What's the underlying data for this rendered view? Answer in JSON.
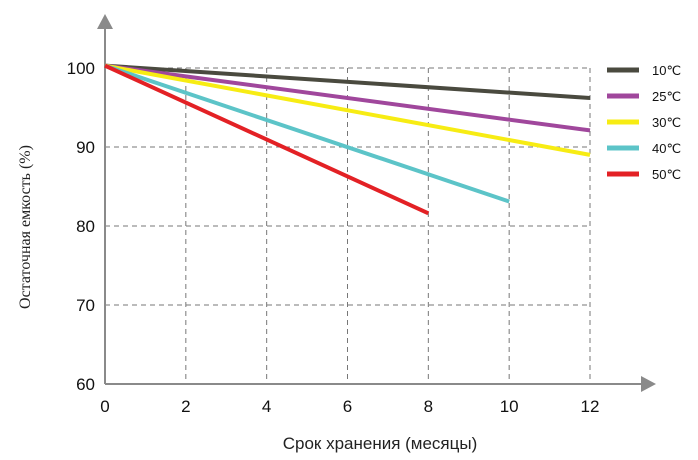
{
  "chart_data": {
    "type": "line",
    "title": "",
    "xlabel": "Срок хранения (месяцы)",
    "ylabel": "Остаточная емкость (%)",
    "xlim": [
      0,
      12
    ],
    "ylim": [
      60,
      100
    ],
    "x_ticks": [
      "0",
      "2",
      "4",
      "6",
      "8",
      "10",
      "12"
    ],
    "y_ticks": [
      "60",
      "70",
      "80",
      "90",
      "100"
    ],
    "grid": true,
    "grid_style": "dashed",
    "legend_position": "right",
    "series": [
      {
        "name": "10℃",
        "color": "#4a4a3f",
        "points": [
          [
            0,
            100.3
          ],
          [
            12,
            96.2
          ]
        ]
      },
      {
        "name": "25℃",
        "color": "#a0479c",
        "points": [
          [
            0,
            100.3
          ],
          [
            12,
            92.1
          ]
        ]
      },
      {
        "name": "30℃",
        "color": "#f7ec13",
        "points": [
          [
            0,
            100.3
          ],
          [
            12,
            89.0
          ]
        ]
      },
      {
        "name": "40℃",
        "color": "#5cc4c8",
        "points": [
          [
            0,
            100.3
          ],
          [
            10,
            83.1
          ]
        ]
      },
      {
        "name": "50℃",
        "color": "#e32125",
        "points": [
          [
            0,
            100.3
          ],
          [
            8,
            81.6
          ]
        ]
      }
    ]
  }
}
